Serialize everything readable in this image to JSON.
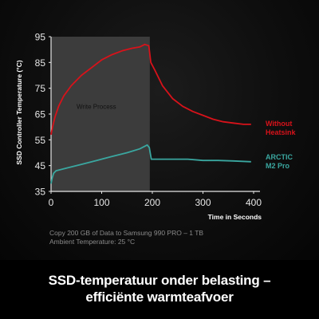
{
  "chart_data": {
    "type": "line",
    "ylabel": "SSD Controller Temperature (°C)",
    "xlabel": "Time in Seconds",
    "xlim": [
      0,
      400
    ],
    "ylim": [
      35,
      95
    ],
    "x_ticks": [
      0,
      100,
      200,
      300,
      400
    ],
    "y_ticks": [
      35,
      45,
      55,
      65,
      75,
      85,
      95
    ],
    "shaded_region": {
      "label": "Write Process",
      "x_start": 0,
      "x_end": 195
    },
    "series": [
      {
        "name": "Without Heatsink",
        "name_lines": [
          "Without",
          "Heatsink"
        ],
        "color": "#d8121a",
        "points": [
          [
            0,
            57
          ],
          [
            3,
            60
          ],
          [
            8,
            64
          ],
          [
            15,
            68
          ],
          [
            25,
            72
          ],
          [
            40,
            76
          ],
          [
            60,
            80
          ],
          [
            80,
            83
          ],
          [
            100,
            86
          ],
          [
            120,
            88
          ],
          [
            140,
            89.5
          ],
          [
            160,
            90.5
          ],
          [
            175,
            91
          ],
          [
            185,
            92
          ],
          [
            193,
            91.5
          ],
          [
            197,
            85
          ],
          [
            205,
            82
          ],
          [
            220,
            76
          ],
          [
            240,
            71
          ],
          [
            260,
            68
          ],
          [
            280,
            66
          ],
          [
            300,
            64.5
          ],
          [
            320,
            63
          ],
          [
            340,
            62
          ],
          [
            360,
            61.5
          ],
          [
            380,
            61
          ],
          [
            395,
            61
          ]
        ]
      },
      {
        "name": "ARCTIC M2 Pro",
        "name_lines": [
          "ARCTIC",
          "M2 Pro"
        ],
        "color": "#3aa7a0",
        "points": [
          [
            0,
            38
          ],
          [
            2,
            40
          ],
          [
            5,
            42
          ],
          [
            10,
            43
          ],
          [
            30,
            44
          ],
          [
            60,
            45.5
          ],
          [
            90,
            47
          ],
          [
            120,
            48.5
          ],
          [
            150,
            50
          ],
          [
            175,
            51.5
          ],
          [
            190,
            53
          ],
          [
            194,
            52
          ],
          [
            198,
            47.5
          ],
          [
            210,
            47.5
          ],
          [
            240,
            47.5
          ],
          [
            270,
            47.5
          ],
          [
            300,
            47
          ],
          [
            330,
            47
          ],
          [
            360,
            46.8
          ],
          [
            395,
            46.5
          ]
        ]
      }
    ]
  },
  "footnotes": {
    "line1": "Copy 200 GB of Data to Samsung 990 PRO  – 1 TB",
    "line2": "Ambient Temperature: 25 °C"
  },
  "caption": {
    "line1": "SSD-temperatuur onder belasting –",
    "line2": "efficiënte warmteafvoer"
  }
}
